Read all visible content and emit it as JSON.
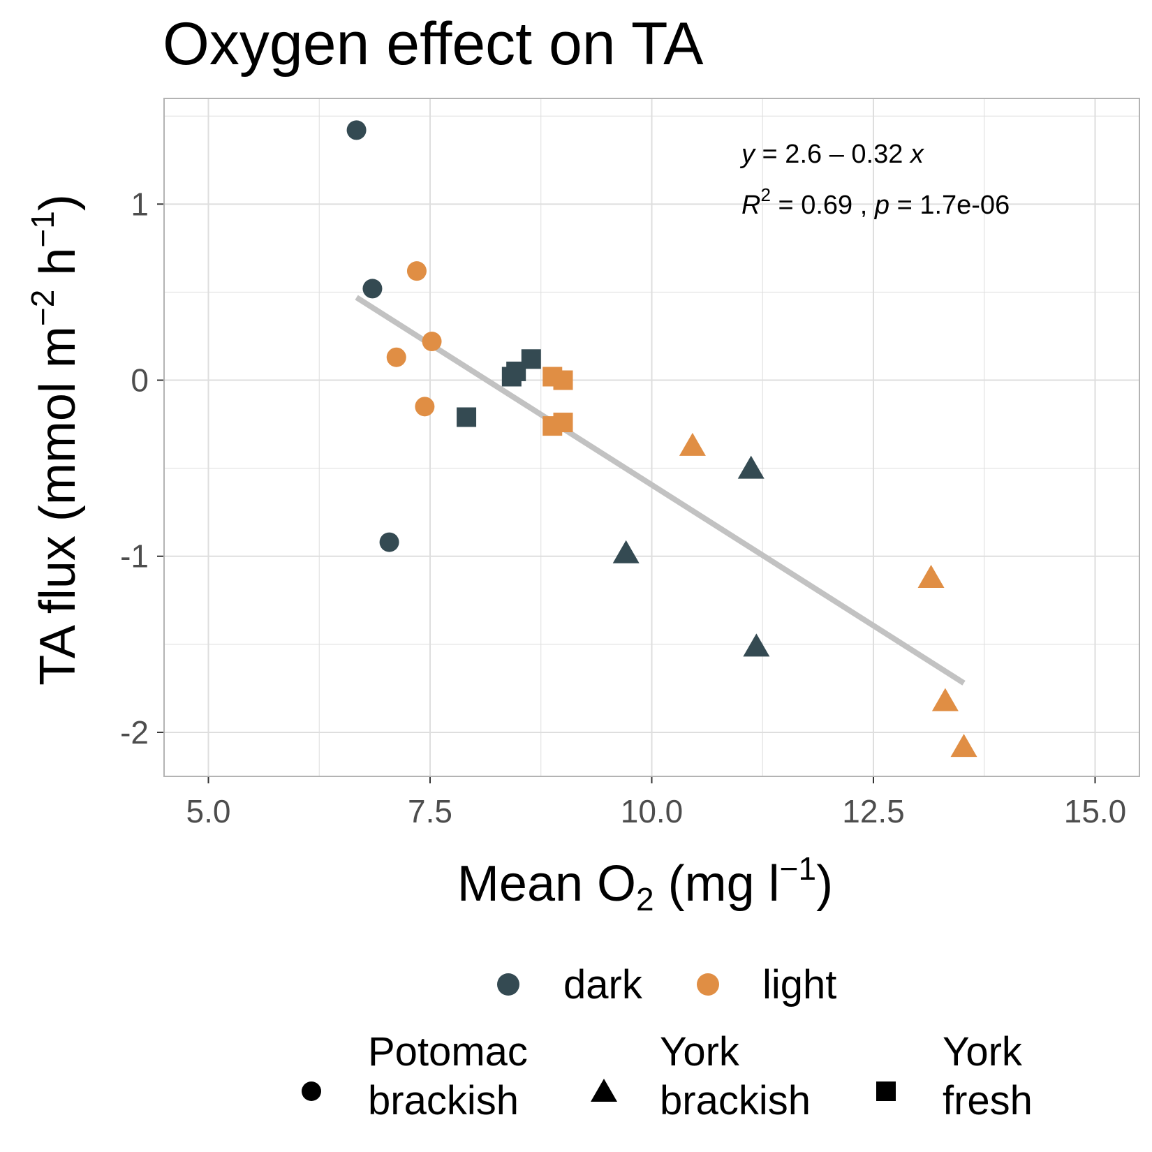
{
  "chart_data": {
    "type": "scatter",
    "title": "Oxygen effect on TA",
    "xlabel": {
      "base": "Mean O",
      "sub": "2",
      "unit_open": " (mg l",
      "sup": "−1",
      "close": ")"
    },
    "ylabel": {
      "base": "TA flux (mmol m",
      "sup1": "−2",
      "mid": " h",
      "sup2": "−1",
      "close": ")"
    },
    "xlim": [
      4.5,
      15.5
    ],
    "ylim": [
      -2.25,
      1.6
    ],
    "x_ticks": [
      5.0,
      7.5,
      10.0,
      12.5,
      15.0
    ],
    "x_tick_labels": [
      "5.0",
      "7.5",
      "10.0",
      "12.5",
      "15.0"
    ],
    "y_ticks": [
      1,
      0,
      -1,
      -2
    ],
    "y_tick_labels": [
      "1",
      "0",
      "-1",
      "-2"
    ],
    "grid": true,
    "colors": {
      "dark": "#344a52",
      "light": "#e08e44",
      "fit": "#c2c2c2",
      "panel_border": "#b3b3b3",
      "grid": "#dedede"
    },
    "points": [
      {
        "x": 6.67,
        "y": 1.42,
        "light": "dark",
        "site": "Potomac brackish"
      },
      {
        "x": 6.85,
        "y": 0.52,
        "light": "dark",
        "site": "Potomac brackish"
      },
      {
        "x": 7.04,
        "y": -0.92,
        "light": "dark",
        "site": "Potomac brackish"
      },
      {
        "x": 7.12,
        "y": 0.13,
        "light": "light",
        "site": "Potomac brackish"
      },
      {
        "x": 7.35,
        "y": 0.62,
        "light": "light",
        "site": "Potomac brackish"
      },
      {
        "x": 7.44,
        "y": -0.15,
        "light": "light",
        "site": "Potomac brackish"
      },
      {
        "x": 7.52,
        "y": 0.22,
        "light": "light",
        "site": "Potomac brackish"
      },
      {
        "x": 9.71,
        "y": -0.98,
        "light": "dark",
        "site": "York brackish"
      },
      {
        "x": 11.12,
        "y": -0.5,
        "light": "dark",
        "site": "York brackish"
      },
      {
        "x": 11.18,
        "y": -1.51,
        "light": "dark",
        "site": "York brackish"
      },
      {
        "x": 10.46,
        "y": -0.37,
        "light": "light",
        "site": "York brackish"
      },
      {
        "x": 13.15,
        "y": -1.12,
        "light": "light",
        "site": "York brackish"
      },
      {
        "x": 13.31,
        "y": -1.82,
        "light": "light",
        "site": "York brackish"
      },
      {
        "x": 13.52,
        "y": -2.08,
        "light": "light",
        "site": "York brackish"
      },
      {
        "x": 7.91,
        "y": -0.21,
        "light": "dark",
        "site": "York fresh"
      },
      {
        "x": 8.42,
        "y": 0.02,
        "light": "dark",
        "site": "York fresh"
      },
      {
        "x": 8.47,
        "y": 0.05,
        "light": "dark",
        "site": "York fresh"
      },
      {
        "x": 8.64,
        "y": 0.12,
        "light": "dark",
        "site": "York fresh"
      },
      {
        "x": 8.88,
        "y": 0.02,
        "light": "light",
        "site": "York fresh"
      },
      {
        "x": 9.0,
        "y": 0.0,
        "light": "light",
        "site": "York fresh"
      },
      {
        "x": 8.88,
        "y": -0.26,
        "light": "light",
        "site": "York fresh"
      },
      {
        "x": 9.0,
        "y": -0.24,
        "light": "light",
        "site": "York fresh"
      }
    ],
    "fit_line": {
      "x": [
        6.67,
        13.52
      ],
      "y": [
        0.47,
        -1.72
      ]
    },
    "annotation": {
      "eq_y": "y",
      "eq_rest": " = 2.6 – 0.32 ",
      "eq_x": "x",
      "r2_r": "R",
      "r2_sup": "2",
      "r2_rest": " = 0.69 , ",
      "p_p": "p",
      "p_rest": " = 1.7e-06"
    },
    "legend_color": {
      "placement": "bottom",
      "items": [
        {
          "key": "dark",
          "label": "dark"
        },
        {
          "key": "light",
          "label": "light"
        }
      ]
    },
    "legend_shape": {
      "placement": "bottom",
      "items": [
        {
          "shape": "circle",
          "line1": "Potomac",
          "line2": "brackish"
        },
        {
          "shape": "triangle",
          "line1": "York",
          "line2": "brackish"
        },
        {
          "shape": "square",
          "line1": "York",
          "line2": "fresh"
        }
      ]
    }
  }
}
